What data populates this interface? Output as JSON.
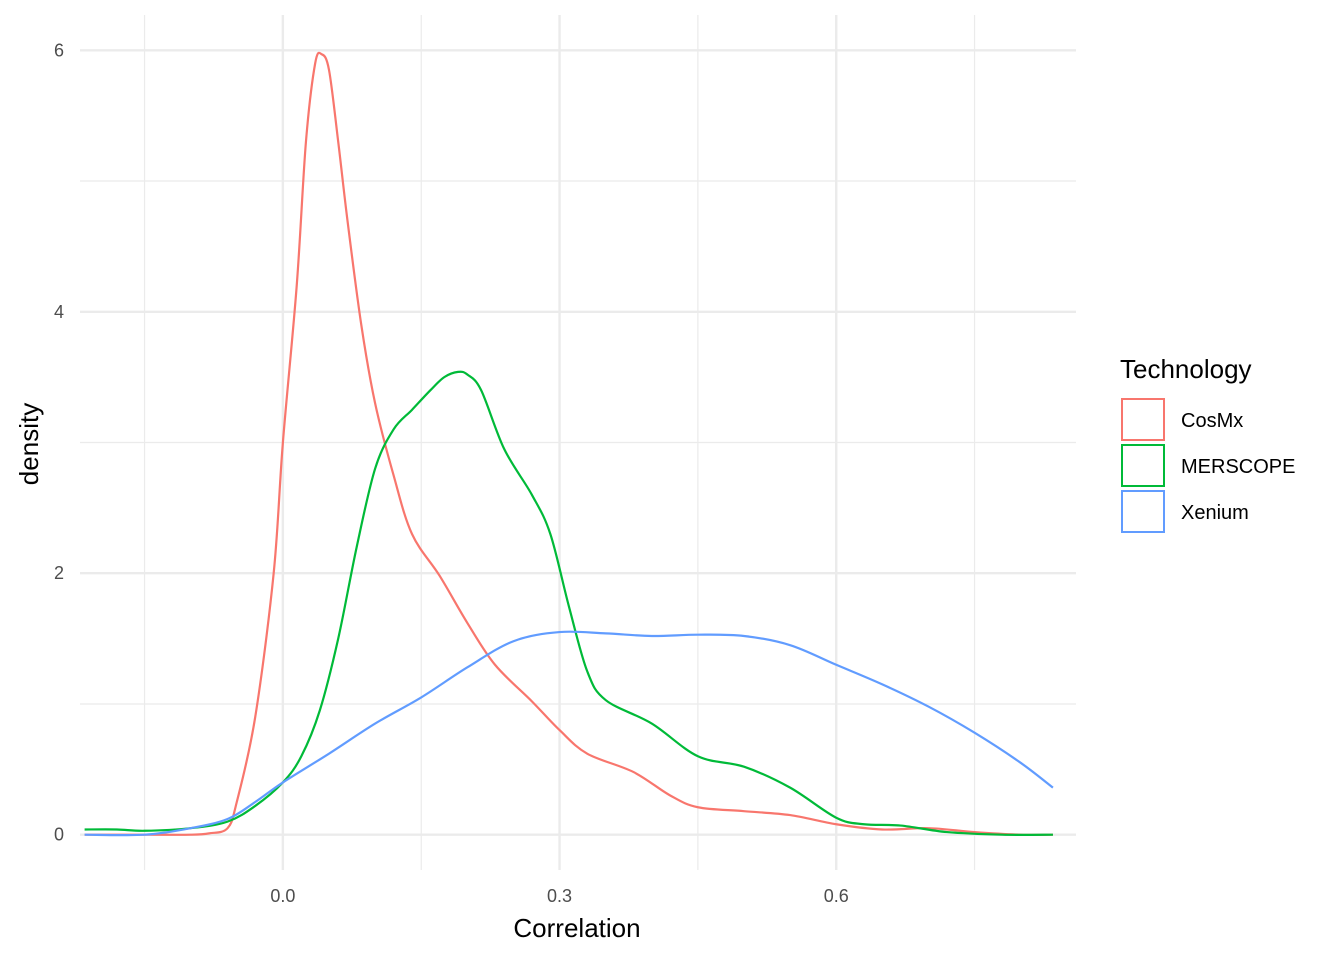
{
  "chart_data": {
    "type": "line",
    "xlabel": "Correlation",
    "ylabel": "density",
    "xlim": [
      -0.22,
      0.86
    ],
    "ylim": [
      -0.27,
      6.27
    ],
    "x_ticks": [
      0.0,
      0.3,
      0.6
    ],
    "x_tick_labels": [
      "0.0",
      "0.3",
      "0.6"
    ],
    "y_ticks": [
      0,
      2,
      4,
      6
    ],
    "y_tick_labels": [
      "0",
      "2",
      "4",
      "6"
    ],
    "grid": true,
    "legend": {
      "title": "Technology",
      "position": "right"
    },
    "series": [
      {
        "name": "CosMx",
        "color": "#F8766D",
        "points": [
          [
            -0.215,
            0.0
          ],
          [
            -0.15,
            0.0
          ],
          [
            -0.1,
            0.0
          ],
          [
            -0.08,
            0.01
          ],
          [
            -0.06,
            0.05
          ],
          [
            -0.05,
            0.25
          ],
          [
            -0.03,
            0.9
          ],
          [
            -0.01,
            2.0
          ],
          [
            0.0,
            3.0
          ],
          [
            0.015,
            4.2
          ],
          [
            0.025,
            5.3
          ],
          [
            0.035,
            5.9
          ],
          [
            0.042,
            5.97
          ],
          [
            0.05,
            5.85
          ],
          [
            0.06,
            5.3
          ],
          [
            0.07,
            4.7
          ],
          [
            0.085,
            3.9
          ],
          [
            0.1,
            3.3
          ],
          [
            0.12,
            2.75
          ],
          [
            0.14,
            2.3
          ],
          [
            0.17,
            1.98
          ],
          [
            0.2,
            1.62
          ],
          [
            0.23,
            1.3
          ],
          [
            0.27,
            1.02
          ],
          [
            0.3,
            0.8
          ],
          [
            0.33,
            0.62
          ],
          [
            0.38,
            0.48
          ],
          [
            0.42,
            0.3
          ],
          [
            0.45,
            0.21
          ],
          [
            0.5,
            0.18
          ],
          [
            0.55,
            0.15
          ],
          [
            0.6,
            0.08
          ],
          [
            0.65,
            0.04
          ],
          [
            0.7,
            0.05
          ],
          [
            0.75,
            0.02
          ],
          [
            0.8,
            0.0
          ],
          [
            0.835,
            0.0
          ]
        ]
      },
      {
        "name": "MERSCOPE",
        "color": "#00BA38",
        "points": [
          [
            -0.215,
            0.04
          ],
          [
            -0.18,
            0.04
          ],
          [
            -0.15,
            0.03
          ],
          [
            -0.1,
            0.05
          ],
          [
            -0.06,
            0.1
          ],
          [
            -0.03,
            0.22
          ],
          [
            0.0,
            0.4
          ],
          [
            0.02,
            0.6
          ],
          [
            0.04,
            0.95
          ],
          [
            0.06,
            1.5
          ],
          [
            0.08,
            2.2
          ],
          [
            0.1,
            2.8
          ],
          [
            0.12,
            3.1
          ],
          [
            0.14,
            3.25
          ],
          [
            0.16,
            3.4
          ],
          [
            0.175,
            3.5
          ],
          [
            0.19,
            3.54
          ],
          [
            0.2,
            3.52
          ],
          [
            0.215,
            3.4
          ],
          [
            0.24,
            2.95
          ],
          [
            0.27,
            2.6
          ],
          [
            0.29,
            2.3
          ],
          [
            0.31,
            1.75
          ],
          [
            0.33,
            1.25
          ],
          [
            0.35,
            1.03
          ],
          [
            0.4,
            0.85
          ],
          [
            0.45,
            0.6
          ],
          [
            0.5,
            0.52
          ],
          [
            0.55,
            0.36
          ],
          [
            0.6,
            0.13
          ],
          [
            0.63,
            0.08
          ],
          [
            0.67,
            0.07
          ],
          [
            0.72,
            0.02
          ],
          [
            0.78,
            0.0
          ],
          [
            0.835,
            0.0
          ]
        ]
      },
      {
        "name": "Xenium",
        "color": "#619CFF",
        "points": [
          [
            -0.215,
            0.0
          ],
          [
            -0.15,
            0.0
          ],
          [
            -0.1,
            0.05
          ],
          [
            -0.06,
            0.12
          ],
          [
            -0.03,
            0.25
          ],
          [
            0.0,
            0.4
          ],
          [
            0.05,
            0.62
          ],
          [
            0.1,
            0.85
          ],
          [
            0.15,
            1.05
          ],
          [
            0.2,
            1.28
          ],
          [
            0.25,
            1.48
          ],
          [
            0.3,
            1.55
          ],
          [
            0.35,
            1.54
          ],
          [
            0.4,
            1.52
          ],
          [
            0.45,
            1.53
          ],
          [
            0.5,
            1.52
          ],
          [
            0.55,
            1.45
          ],
          [
            0.6,
            1.3
          ],
          [
            0.65,
            1.15
          ],
          [
            0.7,
            0.98
          ],
          [
            0.75,
            0.78
          ],
          [
            0.8,
            0.55
          ],
          [
            0.835,
            0.36
          ]
        ]
      }
    ]
  }
}
